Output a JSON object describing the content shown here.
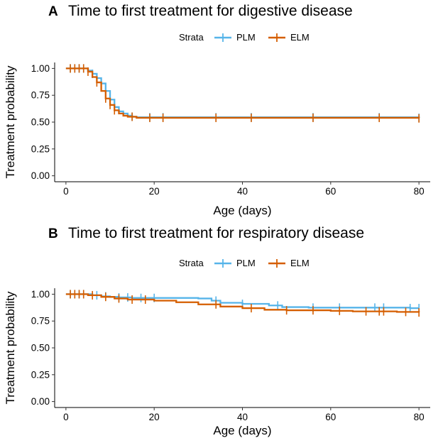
{
  "chart_data": [
    {
      "type": "line",
      "panel_label": "A",
      "title": "Time to first treatment for digestive disease",
      "xlabel": "Age (days)",
      "ylabel": "Treatment probability",
      "xlim": [
        0,
        80
      ],
      "ylim": [
        0,
        1
      ],
      "x_ticks": [
        0,
        20,
        40,
        60,
        80
      ],
      "y_ticks": [
        0,
        0.25,
        0.5,
        0.75,
        1
      ],
      "x_tick_labels": [
        "0",
        "20",
        "40",
        "60",
        "80"
      ],
      "y_tick_labels": [
        "0.00",
        "0.25",
        "0.50",
        "0.75",
        "1.00"
      ],
      "legend": {
        "title": "Strata",
        "placement": "top",
        "entries": [
          "PLM",
          "ELM"
        ]
      },
      "series": [
        {
          "name": "PLM",
          "color": "#56B4E9",
          "steps": [
            [
              0,
              1.0
            ],
            [
              5,
              0.98
            ],
            [
              6,
              0.95
            ],
            [
              7,
              0.91
            ],
            [
              8,
              0.86
            ],
            [
              9,
              0.79
            ],
            [
              10,
              0.71
            ],
            [
              11,
              0.64
            ],
            [
              12,
              0.6
            ],
            [
              13,
              0.58
            ],
            [
              14,
              0.56
            ],
            [
              15,
              0.55
            ],
            [
              16,
              0.545
            ],
            [
              80,
              0.54
            ]
          ],
          "censor_x": [
            1,
            2,
            3,
            4,
            6,
            15,
            19,
            22,
            34,
            42,
            56,
            71,
            80
          ]
        },
        {
          "name": "ELM",
          "color": "#D55E00",
          "steps": [
            [
              0,
              1.0
            ],
            [
              5,
              0.97
            ],
            [
              6,
              0.92
            ],
            [
              7,
              0.87
            ],
            [
              8,
              0.79
            ],
            [
              9,
              0.72
            ],
            [
              10,
              0.66
            ],
            [
              11,
              0.61
            ],
            [
              12,
              0.58
            ],
            [
              13,
              0.56
            ],
            [
              14,
              0.55
            ],
            [
              16,
              0.54
            ],
            [
              80,
              0.535
            ]
          ],
          "censor_x": [
            1,
            2,
            3,
            4,
            5,
            7,
            9,
            10,
            11,
            15,
            19,
            22,
            34,
            42,
            56,
            71,
            80
          ]
        }
      ]
    },
    {
      "type": "line",
      "panel_label": "B",
      "title": "Time to first treatment for respiratory disease",
      "xlabel": "Age (days)",
      "ylabel": "Treatment probability",
      "xlim": [
        0,
        80
      ],
      "ylim": [
        0,
        1
      ],
      "x_ticks": [
        0,
        20,
        40,
        60,
        80
      ],
      "y_ticks": [
        0,
        0.25,
        0.5,
        0.75,
        1
      ],
      "x_tick_labels": [
        "0",
        "20",
        "40",
        "60",
        "80"
      ],
      "y_tick_labels": [
        "0.00",
        "0.25",
        "0.50",
        "0.75",
        "1.00"
      ],
      "legend": {
        "title": "Strata",
        "placement": "top",
        "entries": [
          "PLM",
          "ELM"
        ]
      },
      "series": [
        {
          "name": "PLM",
          "color": "#56B4E9",
          "steps": [
            [
              0,
              1.0
            ],
            [
              6,
              0.99
            ],
            [
              8,
              0.98
            ],
            [
              10,
              0.975
            ],
            [
              12,
              0.97
            ],
            [
              15,
              0.965
            ],
            [
              30,
              0.96
            ],
            [
              33,
              0.94
            ],
            [
              35,
              0.92
            ],
            [
              40,
              0.91
            ],
            [
              46,
              0.895
            ],
            [
              49,
              0.88
            ],
            [
              55,
              0.875
            ],
            [
              78,
              0.87
            ],
            [
              80,
              0.87
            ]
          ],
          "censor_x": [
            1,
            2,
            3,
            4,
            7,
            9,
            12,
            14,
            17,
            20,
            34,
            40,
            48,
            56,
            62,
            70,
            72,
            78,
            80
          ]
        },
        {
          "name": "ELM",
          "color": "#D55E00",
          "steps": [
            [
              0,
              1.0
            ],
            [
              5,
              0.99
            ],
            [
              8,
              0.975
            ],
            [
              11,
              0.96
            ],
            [
              14,
              0.95
            ],
            [
              20,
              0.94
            ],
            [
              25,
              0.925
            ],
            [
              30,
              0.905
            ],
            [
              35,
              0.885
            ],
            [
              40,
              0.87
            ],
            [
              45,
              0.855
            ],
            [
              50,
              0.85
            ],
            [
              60,
              0.845
            ],
            [
              65,
              0.84
            ],
            [
              75,
              0.835
            ],
            [
              80,
              0.83
            ]
          ],
          "censor_x": [
            1,
            2,
            3,
            4,
            6,
            9,
            12,
            15,
            18,
            34,
            42,
            50,
            56,
            62,
            68,
            71,
            72,
            77,
            80
          ]
        }
      ]
    }
  ]
}
